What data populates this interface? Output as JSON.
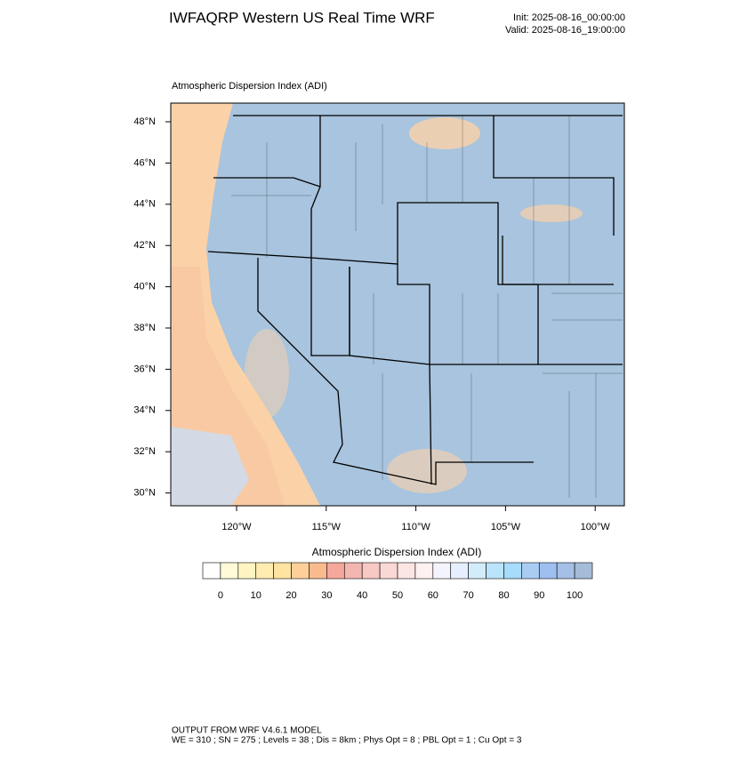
{
  "header": {
    "title": "IWFAQRP Western US Real Time WRF",
    "init": "Init: 2025-08-16_00:00:00",
    "valid": "Valid: 2025-08-16_19:00:00"
  },
  "map": {
    "title": "Atmospheric Dispersion Index   (ADI)",
    "lat_labels": [
      "48°N",
      "46°N",
      "44°N",
      "42°N",
      "40°N",
      "38°N",
      "36°N",
      "34°N",
      "32°N",
      "30°N"
    ],
    "lon_labels": [
      "120°W",
      "115°W",
      "110°W",
      "105°W",
      "100°W"
    ]
  },
  "colorbar": {
    "title": "Atmospheric Dispersion Index  (ADI)",
    "labels": [
      "0",
      "10",
      "20",
      "30",
      "40",
      "50",
      "60",
      "70",
      "80",
      "90",
      "100"
    ],
    "colors": [
      "#ffffff",
      "#fffbd9",
      "#fff4c2",
      "#ffecb0",
      "#ffe3a0",
      "#fdd09a",
      "#f9bb8e",
      "#f6a79b",
      "#f4b6b0",
      "#f7c8c4",
      "#fad8d6",
      "#fce6e4",
      "#fdf1f1",
      "#f4f4ff",
      "#e6efff",
      "#d3ecfb",
      "#b9e4fb",
      "#a7dcfa",
      "#a9ccf3",
      "#9fbff0",
      "#a5bfe6",
      "#a5bcd8"
    ]
  },
  "footer": {
    "line1": "OUTPUT FROM WRF V4.6.1 MODEL",
    "line2": "WE = 310 ; SN = 275 ; Levels = 38 ; Dis = 8km ; Phys Opt = 8 ; PBL Opt = 1 ; Cu Opt = 3"
  }
}
